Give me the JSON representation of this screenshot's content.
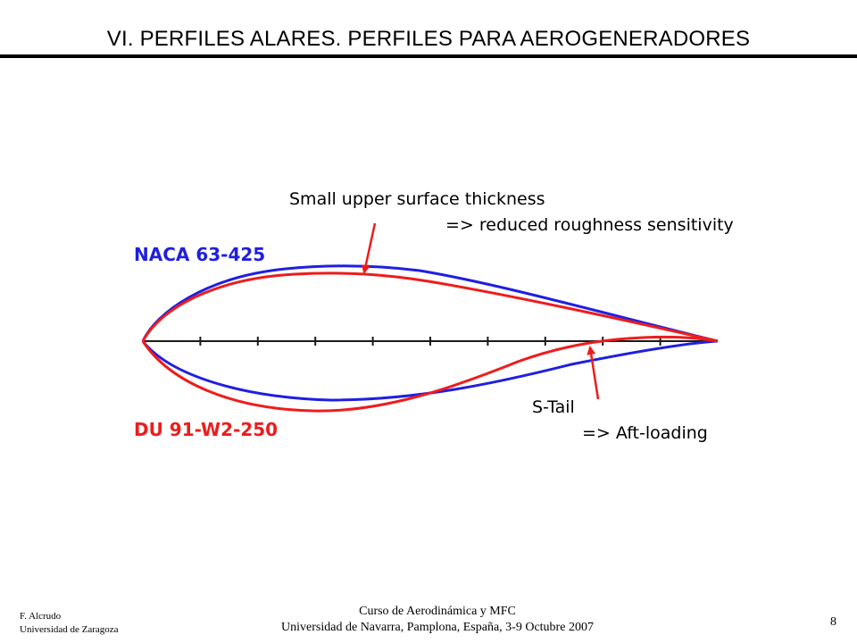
{
  "slide": {
    "title": "VI. PERFILES ALARES. PERFILES PARA AEROGENERADORES"
  },
  "diagram": {
    "colors": {
      "naca": "#1f1fe0",
      "du": "#ee1c1c",
      "axis": "#1a1a1a",
      "annotation": "#ee1c1c"
    },
    "labels": {
      "naca": "NACA 63-425",
      "du": "DU 91-W2-250",
      "upper_note_line1": "Small upper surface thickness",
      "upper_note_line2": "=> reduced roughness sensitivity",
      "tail_note_line1": "S-Tail",
      "tail_note_line2": "=> Aft-loading"
    }
  },
  "footer": {
    "author": "F. Alcrudo",
    "university": "Universidad de Zaragoza",
    "course": "Curso de Aerodinámica y MFC",
    "venue": "Universidad de Navarra, Pamplona, España, 3-9 Octubre 2007",
    "page": "8"
  }
}
